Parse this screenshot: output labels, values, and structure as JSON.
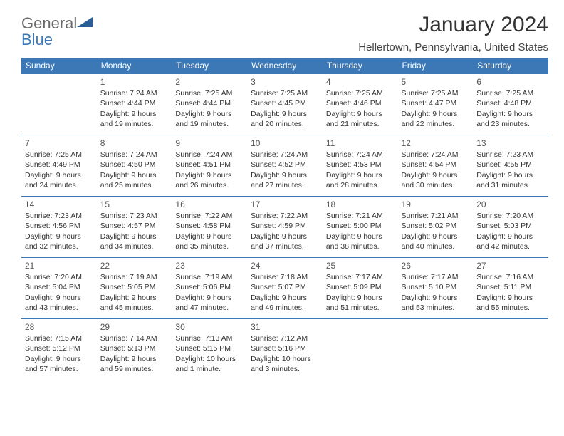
{
  "brand": {
    "word1": "General",
    "word2": "Blue"
  },
  "title": {
    "month": "January 2024",
    "location": "Hellertown, Pennsylvania, United States"
  },
  "colors": {
    "header_bg": "#3b78b5",
    "header_fg": "#ffffff",
    "cell_border": "#3b78b5",
    "text": "#333333",
    "logo_gray": "#6b6b6b",
    "logo_blue": "#3b78b5",
    "bg": "#ffffff"
  },
  "fonts": {
    "family": "Arial",
    "title_size_pt": 22,
    "location_size_pt": 11,
    "dayhead_size_pt": 9,
    "cell_size_pt": 8
  },
  "calendar": {
    "weekday_labels": [
      "Sunday",
      "Monday",
      "Tuesday",
      "Wednesday",
      "Thursday",
      "Friday",
      "Saturday"
    ],
    "weeks": [
      [
        null,
        {
          "d": "1",
          "sr": "Sunrise: 7:24 AM",
          "ss": "Sunset: 4:44 PM",
          "dl1": "Daylight: 9 hours",
          "dl2": "and 19 minutes."
        },
        {
          "d": "2",
          "sr": "Sunrise: 7:25 AM",
          "ss": "Sunset: 4:44 PM",
          "dl1": "Daylight: 9 hours",
          "dl2": "and 19 minutes."
        },
        {
          "d": "3",
          "sr": "Sunrise: 7:25 AM",
          "ss": "Sunset: 4:45 PM",
          "dl1": "Daylight: 9 hours",
          "dl2": "and 20 minutes."
        },
        {
          "d": "4",
          "sr": "Sunrise: 7:25 AM",
          "ss": "Sunset: 4:46 PM",
          "dl1": "Daylight: 9 hours",
          "dl2": "and 21 minutes."
        },
        {
          "d": "5",
          "sr": "Sunrise: 7:25 AM",
          "ss": "Sunset: 4:47 PM",
          "dl1": "Daylight: 9 hours",
          "dl2": "and 22 minutes."
        },
        {
          "d": "6",
          "sr": "Sunrise: 7:25 AM",
          "ss": "Sunset: 4:48 PM",
          "dl1": "Daylight: 9 hours",
          "dl2": "and 23 minutes."
        }
      ],
      [
        {
          "d": "7",
          "sr": "Sunrise: 7:25 AM",
          "ss": "Sunset: 4:49 PM",
          "dl1": "Daylight: 9 hours",
          "dl2": "and 24 minutes."
        },
        {
          "d": "8",
          "sr": "Sunrise: 7:24 AM",
          "ss": "Sunset: 4:50 PM",
          "dl1": "Daylight: 9 hours",
          "dl2": "and 25 minutes."
        },
        {
          "d": "9",
          "sr": "Sunrise: 7:24 AM",
          "ss": "Sunset: 4:51 PM",
          "dl1": "Daylight: 9 hours",
          "dl2": "and 26 minutes."
        },
        {
          "d": "10",
          "sr": "Sunrise: 7:24 AM",
          "ss": "Sunset: 4:52 PM",
          "dl1": "Daylight: 9 hours",
          "dl2": "and 27 minutes."
        },
        {
          "d": "11",
          "sr": "Sunrise: 7:24 AM",
          "ss": "Sunset: 4:53 PM",
          "dl1": "Daylight: 9 hours",
          "dl2": "and 28 minutes."
        },
        {
          "d": "12",
          "sr": "Sunrise: 7:24 AM",
          "ss": "Sunset: 4:54 PM",
          "dl1": "Daylight: 9 hours",
          "dl2": "and 30 minutes."
        },
        {
          "d": "13",
          "sr": "Sunrise: 7:23 AM",
          "ss": "Sunset: 4:55 PM",
          "dl1": "Daylight: 9 hours",
          "dl2": "and 31 minutes."
        }
      ],
      [
        {
          "d": "14",
          "sr": "Sunrise: 7:23 AM",
          "ss": "Sunset: 4:56 PM",
          "dl1": "Daylight: 9 hours",
          "dl2": "and 32 minutes."
        },
        {
          "d": "15",
          "sr": "Sunrise: 7:23 AM",
          "ss": "Sunset: 4:57 PM",
          "dl1": "Daylight: 9 hours",
          "dl2": "and 34 minutes."
        },
        {
          "d": "16",
          "sr": "Sunrise: 7:22 AM",
          "ss": "Sunset: 4:58 PM",
          "dl1": "Daylight: 9 hours",
          "dl2": "and 35 minutes."
        },
        {
          "d": "17",
          "sr": "Sunrise: 7:22 AM",
          "ss": "Sunset: 4:59 PM",
          "dl1": "Daylight: 9 hours",
          "dl2": "and 37 minutes."
        },
        {
          "d": "18",
          "sr": "Sunrise: 7:21 AM",
          "ss": "Sunset: 5:00 PM",
          "dl1": "Daylight: 9 hours",
          "dl2": "and 38 minutes."
        },
        {
          "d": "19",
          "sr": "Sunrise: 7:21 AM",
          "ss": "Sunset: 5:02 PM",
          "dl1": "Daylight: 9 hours",
          "dl2": "and 40 minutes."
        },
        {
          "d": "20",
          "sr": "Sunrise: 7:20 AM",
          "ss": "Sunset: 5:03 PM",
          "dl1": "Daylight: 9 hours",
          "dl2": "and 42 minutes."
        }
      ],
      [
        {
          "d": "21",
          "sr": "Sunrise: 7:20 AM",
          "ss": "Sunset: 5:04 PM",
          "dl1": "Daylight: 9 hours",
          "dl2": "and 43 minutes."
        },
        {
          "d": "22",
          "sr": "Sunrise: 7:19 AM",
          "ss": "Sunset: 5:05 PM",
          "dl1": "Daylight: 9 hours",
          "dl2": "and 45 minutes."
        },
        {
          "d": "23",
          "sr": "Sunrise: 7:19 AM",
          "ss": "Sunset: 5:06 PM",
          "dl1": "Daylight: 9 hours",
          "dl2": "and 47 minutes."
        },
        {
          "d": "24",
          "sr": "Sunrise: 7:18 AM",
          "ss": "Sunset: 5:07 PM",
          "dl1": "Daylight: 9 hours",
          "dl2": "and 49 minutes."
        },
        {
          "d": "25",
          "sr": "Sunrise: 7:17 AM",
          "ss": "Sunset: 5:09 PM",
          "dl1": "Daylight: 9 hours",
          "dl2": "and 51 minutes."
        },
        {
          "d": "26",
          "sr": "Sunrise: 7:17 AM",
          "ss": "Sunset: 5:10 PM",
          "dl1": "Daylight: 9 hours",
          "dl2": "and 53 minutes."
        },
        {
          "d": "27",
          "sr": "Sunrise: 7:16 AM",
          "ss": "Sunset: 5:11 PM",
          "dl1": "Daylight: 9 hours",
          "dl2": "and 55 minutes."
        }
      ],
      [
        {
          "d": "28",
          "sr": "Sunrise: 7:15 AM",
          "ss": "Sunset: 5:12 PM",
          "dl1": "Daylight: 9 hours",
          "dl2": "and 57 minutes."
        },
        {
          "d": "29",
          "sr": "Sunrise: 7:14 AM",
          "ss": "Sunset: 5:13 PM",
          "dl1": "Daylight: 9 hours",
          "dl2": "and 59 minutes."
        },
        {
          "d": "30",
          "sr": "Sunrise: 7:13 AM",
          "ss": "Sunset: 5:15 PM",
          "dl1": "Daylight: 10 hours",
          "dl2": "and 1 minute."
        },
        {
          "d": "31",
          "sr": "Sunrise: 7:12 AM",
          "ss": "Sunset: 5:16 PM",
          "dl1": "Daylight: 10 hours",
          "dl2": "and 3 minutes."
        },
        null,
        null,
        null
      ]
    ]
  }
}
